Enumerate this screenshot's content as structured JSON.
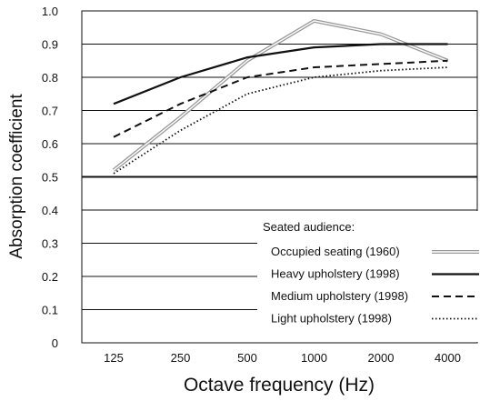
{
  "chart_data": {
    "type": "line",
    "xlabel": "Octave frequency (Hz)",
    "ylabel": "Absorption coefficient",
    "categories": [
      "125",
      "250",
      "500",
      "1000",
      "2000",
      "4000"
    ],
    "ylim": [
      0,
      1.0
    ],
    "yticks": [
      "0",
      "0.1",
      "0.2",
      "0.3",
      "0.4",
      "0.5",
      "0.6",
      "0.7",
      "0.8",
      "0.9",
      "1.0"
    ],
    "grid": "horizontal",
    "legend_position": "bottom-right",
    "legend_title": "Seated audience:",
    "series": [
      {
        "name": "Occupied seating (1960)",
        "style": "double",
        "color": "#9a9a9a",
        "values": [
          0.52,
          0.68,
          0.85,
          0.97,
          0.93,
          0.85
        ]
      },
      {
        "name": "Heavy upholstery (1998)",
        "style": "solid",
        "color": "#111111",
        "values": [
          0.72,
          0.8,
          0.86,
          0.89,
          0.9,
          0.9
        ]
      },
      {
        "name": "Medium upholstery (1998)",
        "style": "dashed",
        "color": "#111111",
        "values": [
          0.62,
          0.72,
          0.8,
          0.83,
          0.84,
          0.85
        ]
      },
      {
        "name": "Light upholstery (1998)",
        "style": "dotted",
        "color": "#111111",
        "values": [
          0.51,
          0.64,
          0.75,
          0.8,
          0.82,
          0.83
        ]
      }
    ]
  }
}
